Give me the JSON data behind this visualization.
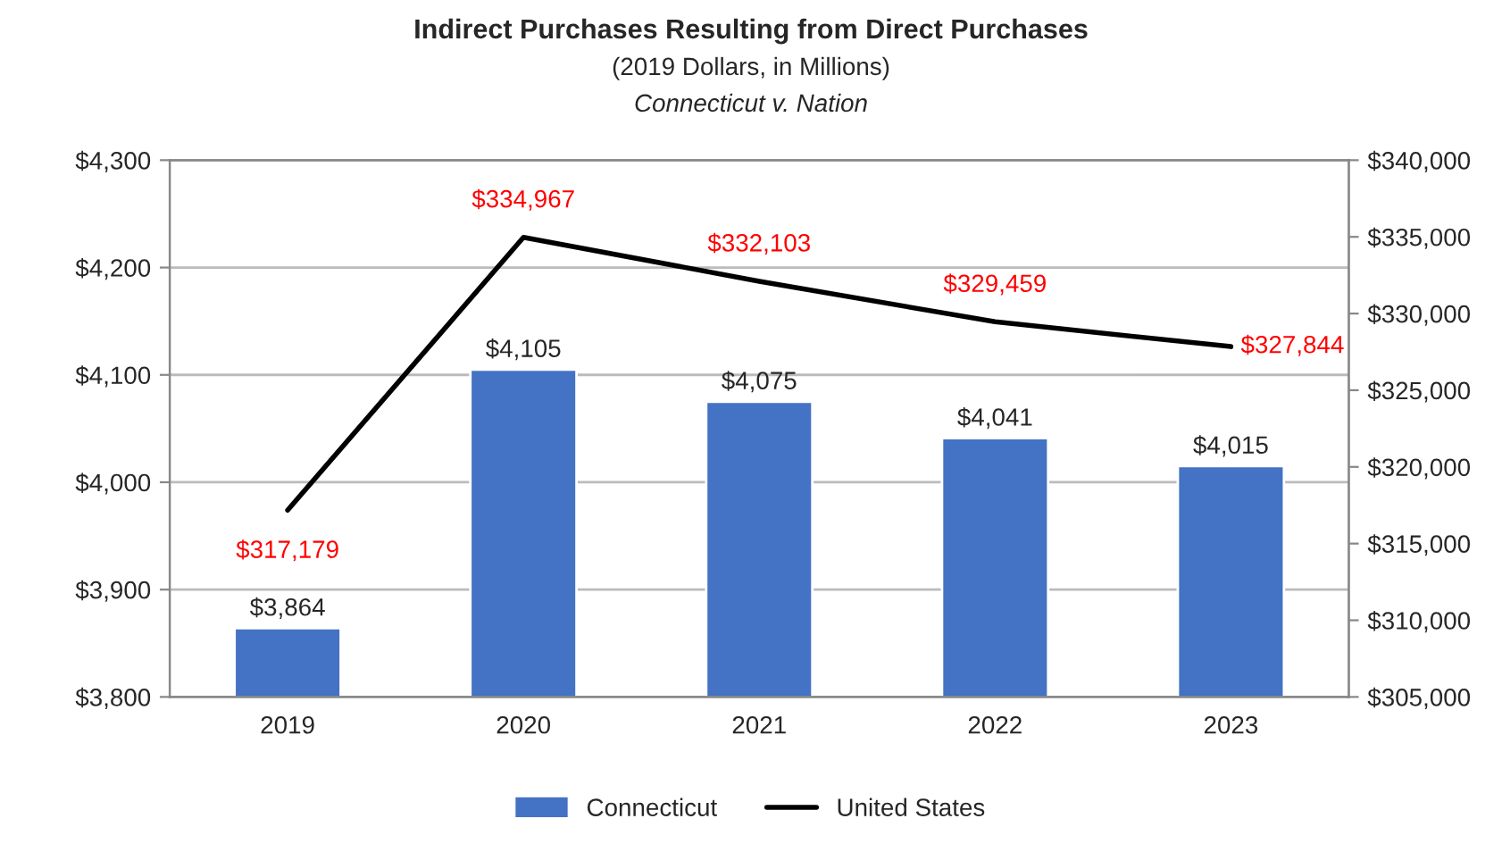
{
  "chart_data": {
    "type": "bar",
    "title": "Indirect Purchases Resulting from Direct Purchases",
    "subtitle": "(2019 Dollars, in Millions)",
    "annotations": [
      "Connecticut v. Nation"
    ],
    "categories": [
      "2019",
      "2020",
      "2021",
      "2022",
      "2023"
    ],
    "series": [
      {
        "name": "Connecticut",
        "color": "#4472c4",
        "values": [
          3864,
          4105,
          4075,
          4041,
          4015
        ],
        "value_labels": [
          "$3,864",
          "$4,105",
          "$4,075",
          "$4,041",
          "$4,015"
        ]
      },
      {
        "name": "United States",
        "type": "line",
        "axis": "y2",
        "color": "#000000",
        "values": [
          317179,
          334967,
          332103,
          329459,
          327844
        ],
        "value_labels": [
          "$317,179",
          "$334,967",
          "$332,103",
          "$329,459",
          "$327,844"
        ]
      }
    ],
    "ylim": [
      3800,
      4300
    ],
    "yticks": [
      {
        "value": 3800,
        "label": "$3,800"
      },
      {
        "value": 3900,
        "label": "$3,900"
      },
      {
        "value": 4000,
        "label": "$4,000"
      },
      {
        "value": 4100,
        "label": "$4,100"
      },
      {
        "value": 4200,
        "label": "$4,200"
      },
      {
        "value": 4300,
        "label": "$4,300"
      }
    ],
    "y2lim": [
      305000,
      340000
    ],
    "y2ticks": [
      {
        "value": 305000,
        "label": "$305,000"
      },
      {
        "value": 310000,
        "label": "$310,000"
      },
      {
        "value": 315000,
        "label": "$315,000"
      },
      {
        "value": 320000,
        "label": "$320,000"
      },
      {
        "value": 325000,
        "label": "$325,000"
      },
      {
        "value": 330000,
        "label": "$330,000"
      },
      {
        "value": 335000,
        "label": "$335,000"
      },
      {
        "value": 340000,
        "label": "$340,000"
      }
    ],
    "grid": "y",
    "legend": "bottom",
    "marker": "none",
    "line_style": "solid"
  }
}
